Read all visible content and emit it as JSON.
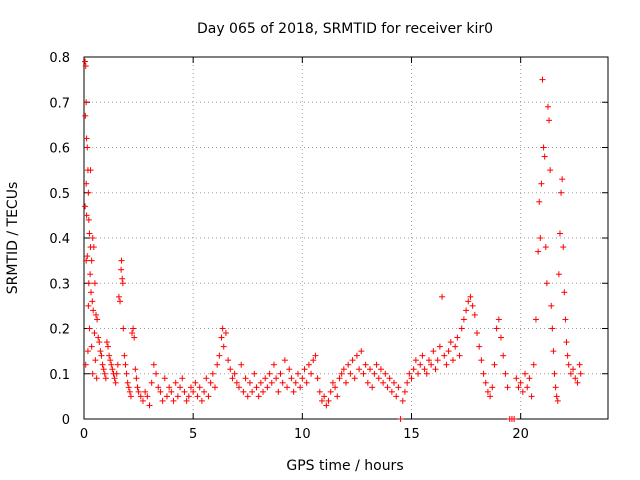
{
  "chart_data": {
    "type": "scatter",
    "title": "Day 065 of 2018, SRMTID for receiver kir0",
    "xlabel": "GPS time / hours",
    "ylabel": "SRMTID / TECUs",
    "xlim": [
      0,
      24
    ],
    "ylim": [
      0,
      0.8
    ],
    "xticks": [
      0,
      5,
      10,
      15,
      20
    ],
    "yticks": [
      0,
      0.1,
      0.2,
      0.3,
      0.4,
      0.5,
      0.6,
      0.7,
      0.8
    ],
    "xtick_labels": [
      "0",
      "5",
      "10",
      "15",
      "20"
    ],
    "ytick_labels": [
      "0",
      "0.1",
      "0.2",
      "0.3",
      "0.4",
      "0.5",
      "0.6",
      "0.7",
      "0.8"
    ],
    "grid": true,
    "marker": "+",
    "color": "#ff0000",
    "series": [
      {
        "name": "SRMTID",
        "points": [
          [
            0.05,
            0.79
          ],
          [
            0.08,
            0.78
          ],
          [
            0.1,
            0.7
          ],
          [
            0.12,
            0.62
          ],
          [
            0.06,
            0.67
          ],
          [
            0.15,
            0.6
          ],
          [
            0.18,
            0.55
          ],
          [
            0.1,
            0.52
          ],
          [
            0.2,
            0.5
          ],
          [
            0.05,
            0.47
          ],
          [
            0.12,
            0.45
          ],
          [
            0.22,
            0.44
          ],
          [
            0.25,
            0.41
          ],
          [
            0.3,
            0.38
          ],
          [
            0.15,
            0.36
          ],
          [
            0.35,
            0.35
          ],
          [
            0.4,
            0.4
          ],
          [
            0.45,
            0.38
          ],
          [
            0.28,
            0.32
          ],
          [
            0.5,
            0.3
          ],
          [
            0.32,
            0.28
          ],
          [
            0.38,
            0.26
          ],
          [
            0.2,
            0.25
          ],
          [
            0.42,
            0.24
          ],
          [
            0.55,
            0.23
          ],
          [
            0.6,
            0.22
          ],
          [
            0.25,
            0.2
          ],
          [
            0.48,
            0.19
          ],
          [
            0.65,
            0.18
          ],
          [
            0.7,
            0.17
          ],
          [
            0.35,
            0.16
          ],
          [
            0.75,
            0.15
          ],
          [
            0.8,
            0.14
          ],
          [
            0.52,
            0.13
          ],
          [
            0.85,
            0.12
          ],
          [
            0.9,
            0.11
          ],
          [
            0.4,
            0.1
          ],
          [
            0.95,
            0.1
          ],
          [
            0.58,
            0.09
          ],
          [
            1.0,
            0.09
          ],
          [
            0.08,
            0.12
          ],
          [
            0.18,
            0.15
          ],
          [
            0.3,
            0.55
          ],
          [
            0.1,
            0.35
          ],
          [
            0.22,
            0.3
          ],
          [
            1.05,
            0.17
          ],
          [
            1.1,
            0.16
          ],
          [
            1.15,
            0.14
          ],
          [
            1.2,
            0.13
          ],
          [
            1.25,
            0.12
          ],
          [
            1.3,
            0.11
          ],
          [
            1.35,
            0.1
          ],
          [
            1.4,
            0.09
          ],
          [
            1.45,
            0.08
          ],
          [
            1.5,
            0.1
          ],
          [
            1.55,
            0.12
          ],
          [
            1.6,
            0.27
          ],
          [
            1.65,
            0.26
          ],
          [
            1.7,
            0.33
          ],
          [
            1.72,
            0.35
          ],
          [
            1.75,
            0.31
          ],
          [
            1.78,
            0.3
          ],
          [
            1.8,
            0.2
          ],
          [
            1.85,
            0.14
          ],
          [
            1.9,
            0.12
          ],
          [
            1.95,
            0.1
          ],
          [
            2.0,
            0.08
          ],
          [
            2.05,
            0.07
          ],
          [
            2.1,
            0.06
          ],
          [
            2.15,
            0.05
          ],
          [
            2.2,
            0.19
          ],
          [
            2.25,
            0.2
          ],
          [
            2.3,
            0.18
          ],
          [
            2.35,
            0.11
          ],
          [
            2.4,
            0.09
          ],
          [
            2.45,
            0.07
          ],
          [
            2.5,
            0.06
          ],
          [
            2.6,
            0.05
          ],
          [
            2.7,
            0.04
          ],
          [
            2.8,
            0.06
          ],
          [
            2.9,
            0.05
          ],
          [
            3.0,
            0.03
          ],
          [
            3.1,
            0.08
          ],
          [
            3.2,
            0.12
          ],
          [
            3.3,
            0.1
          ],
          [
            3.4,
            0.07
          ],
          [
            3.5,
            0.06
          ],
          [
            3.6,
            0.04
          ],
          [
            3.7,
            0.09
          ],
          [
            3.8,
            0.05
          ],
          [
            3.9,
            0.07
          ],
          [
            4.0,
            0.06
          ],
          [
            4.1,
            0.04
          ],
          [
            4.2,
            0.08
          ],
          [
            4.3,
            0.05
          ],
          [
            4.4,
            0.07
          ],
          [
            4.5,
            0.09
          ],
          [
            4.6,
            0.06
          ],
          [
            4.7,
            0.04
          ],
          [
            4.8,
            0.05
          ],
          [
            4.9,
            0.07
          ],
          [
            5.0,
            0.06
          ],
          [
            5.1,
            0.08
          ],
          [
            5.2,
            0.05
          ],
          [
            5.3,
            0.07
          ],
          [
            5.4,
            0.04
          ],
          [
            5.5,
            0.06
          ],
          [
            5.6,
            0.09
          ],
          [
            5.7,
            0.05
          ],
          [
            5.8,
            0.08
          ],
          [
            5.9,
            0.1
          ],
          [
            6.0,
            0.07
          ],
          [
            6.1,
            0.12
          ],
          [
            6.2,
            0.14
          ],
          [
            6.3,
            0.18
          ],
          [
            6.35,
            0.2
          ],
          [
            6.4,
            0.16
          ],
          [
            6.5,
            0.19
          ],
          [
            6.6,
            0.13
          ],
          [
            6.7,
            0.11
          ],
          [
            6.8,
            0.09
          ],
          [
            6.9,
            0.1
          ],
          [
            7.0,
            0.08
          ],
          [
            7.1,
            0.07
          ],
          [
            7.2,
            0.12
          ],
          [
            7.3,
            0.06
          ],
          [
            7.4,
            0.09
          ],
          [
            7.5,
            0.05
          ],
          [
            7.6,
            0.08
          ],
          [
            7.7,
            0.06
          ],
          [
            7.8,
            0.1
          ],
          [
            7.9,
            0.07
          ],
          [
            8.0,
            0.05
          ],
          [
            8.1,
            0.08
          ],
          [
            8.2,
            0.06
          ],
          [
            8.3,
            0.09
          ],
          [
            8.4,
            0.07
          ],
          [
            8.5,
            0.1
          ],
          [
            8.6,
            0.08
          ],
          [
            8.7,
            0.12
          ],
          [
            8.8,
            0.09
          ],
          [
            8.9,
            0.06
          ],
          [
            9.0,
            0.1
          ],
          [
            9.1,
            0.08
          ],
          [
            9.2,
            0.13
          ],
          [
            9.3,
            0.07
          ],
          [
            9.4,
            0.11
          ],
          [
            9.5,
            0.09
          ],
          [
            9.6,
            0.06
          ],
          [
            9.7,
            0.08
          ],
          [
            9.8,
            0.1
          ],
          [
            9.9,
            0.07
          ],
          [
            10.0,
            0.09
          ],
          [
            10.1,
            0.11
          ],
          [
            10.2,
            0.08
          ],
          [
            10.3,
            0.12
          ],
          [
            10.4,
            0.1
          ],
          [
            10.5,
            0.13
          ],
          [
            10.6,
            0.14
          ],
          [
            10.7,
            0.09
          ],
          [
            10.8,
            0.06
          ],
          [
            10.9,
            0.04
          ],
          [
            11.0,
            0.05
          ],
          [
            11.1,
            0.03
          ],
          [
            11.2,
            0.04
          ],
          [
            11.3,
            0.06
          ],
          [
            11.4,
            0.08
          ],
          [
            11.5,
            0.07
          ],
          [
            11.6,
            0.05
          ],
          [
            11.7,
            0.09
          ],
          [
            11.8,
            0.1
          ],
          [
            11.9,
            0.11
          ],
          [
            12.0,
            0.08
          ],
          [
            12.1,
            0.12
          ],
          [
            12.2,
            0.1
          ],
          [
            12.3,
            0.13
          ],
          [
            12.4,
            0.09
          ],
          [
            12.5,
            0.14
          ],
          [
            12.6,
            0.11
          ],
          [
            12.7,
            0.15
          ],
          [
            12.8,
            0.1
          ],
          [
            12.9,
            0.12
          ],
          [
            13.0,
            0.08
          ],
          [
            13.1,
            0.11
          ],
          [
            13.2,
            0.07
          ],
          [
            13.3,
            0.1
          ],
          [
            13.4,
            0.12
          ],
          [
            13.5,
            0.09
          ],
          [
            13.6,
            0.11
          ],
          [
            13.7,
            0.08
          ],
          [
            13.8,
            0.1
          ],
          [
            13.9,
            0.07
          ],
          [
            14.0,
            0.09
          ],
          [
            14.1,
            0.06
          ],
          [
            14.2,
            0.08
          ],
          [
            14.3,
            0.05
          ],
          [
            14.4,
            0.07
          ],
          [
            14.5,
            0.0
          ],
          [
            14.6,
            0.04
          ],
          [
            14.7,
            0.06
          ],
          [
            14.8,
            0.08
          ],
          [
            14.9,
            0.1
          ],
          [
            15.0,
            0.09
          ],
          [
            15.1,
            0.11
          ],
          [
            15.2,
            0.13
          ],
          [
            15.3,
            0.1
          ],
          [
            15.4,
            0.12
          ],
          [
            15.5,
            0.14
          ],
          [
            15.6,
            0.11
          ],
          [
            15.7,
            0.1
          ],
          [
            15.8,
            0.13
          ],
          [
            15.9,
            0.12
          ],
          [
            16.0,
            0.15
          ],
          [
            16.1,
            0.11
          ],
          [
            16.2,
            0.13
          ],
          [
            16.3,
            0.16
          ],
          [
            16.4,
            0.27
          ],
          [
            16.5,
            0.14
          ],
          [
            16.6,
            0.12
          ],
          [
            16.7,
            0.15
          ],
          [
            16.8,
            0.17
          ],
          [
            16.9,
            0.13
          ],
          [
            17.0,
            0.16
          ],
          [
            17.1,
            0.18
          ],
          [
            17.2,
            0.14
          ],
          [
            17.3,
            0.2
          ],
          [
            17.4,
            0.22
          ],
          [
            17.5,
            0.24
          ],
          [
            17.6,
            0.26
          ],
          [
            17.7,
            0.27
          ],
          [
            17.8,
            0.25
          ],
          [
            17.9,
            0.23
          ],
          [
            18.0,
            0.19
          ],
          [
            18.1,
            0.16
          ],
          [
            18.2,
            0.13
          ],
          [
            18.3,
            0.1
          ],
          [
            18.4,
            0.08
          ],
          [
            18.5,
            0.06
          ],
          [
            18.6,
            0.05
          ],
          [
            18.7,
            0.07
          ],
          [
            18.8,
            0.12
          ],
          [
            18.9,
            0.2
          ],
          [
            19.0,
            0.22
          ],
          [
            19.1,
            0.18
          ],
          [
            19.2,
            0.14
          ],
          [
            19.3,
            0.1
          ],
          [
            19.4,
            0.07
          ],
          [
            19.5,
            0.0
          ],
          [
            19.6,
            0.0
          ],
          [
            19.7,
            0.0
          ],
          [
            19.8,
            0.09
          ],
          [
            19.9,
            0.07
          ],
          [
            20.0,
            0.08
          ],
          [
            20.1,
            0.06
          ],
          [
            20.2,
            0.1
          ],
          [
            20.3,
            0.07
          ],
          [
            20.4,
            0.09
          ],
          [
            20.5,
            0.05
          ],
          [
            20.6,
            0.12
          ],
          [
            20.7,
            0.22
          ],
          [
            20.8,
            0.37
          ],
          [
            20.85,
            0.48
          ],
          [
            20.9,
            0.4
          ],
          [
            20.95,
            0.52
          ],
          [
            21.0,
            0.75
          ],
          [
            21.05,
            0.6
          ],
          [
            21.1,
            0.58
          ],
          [
            21.15,
            0.38
          ],
          [
            21.2,
            0.3
          ],
          [
            21.25,
            0.69
          ],
          [
            21.3,
            0.66
          ],
          [
            21.35,
            0.55
          ],
          [
            21.4,
            0.25
          ],
          [
            21.45,
            0.2
          ],
          [
            21.5,
            0.15
          ],
          [
            21.55,
            0.1
          ],
          [
            21.6,
            0.07
          ],
          [
            21.65,
            0.05
          ],
          [
            21.7,
            0.04
          ],
          [
            21.75,
            0.32
          ],
          [
            21.8,
            0.41
          ],
          [
            21.85,
            0.5
          ],
          [
            21.9,
            0.53
          ],
          [
            21.95,
            0.38
          ],
          [
            22.0,
            0.28
          ],
          [
            22.05,
            0.22
          ],
          [
            22.1,
            0.17
          ],
          [
            22.15,
            0.14
          ],
          [
            22.2,
            0.12
          ],
          [
            22.3,
            0.1
          ],
          [
            22.4,
            0.11
          ],
          [
            22.5,
            0.09
          ],
          [
            22.6,
            0.08
          ],
          [
            22.7,
            0.12
          ],
          [
            22.75,
            0.1
          ]
        ]
      }
    ]
  }
}
